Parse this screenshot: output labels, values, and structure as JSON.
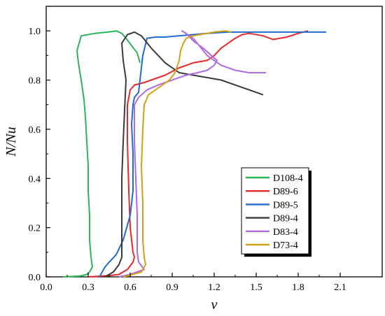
{
  "chart_data": {
    "type": "line",
    "xlabel": "ν",
    "ylabel": "N/Nu",
    "xlim": [
      0.0,
      2.4
    ],
    "ylim": [
      0.0,
      1.1
    ],
    "x_ticks": [
      "0.0",
      "0.3",
      "0.6",
      "0.9",
      "1.2",
      "1.5",
      "1.8",
      "2.1"
    ],
    "y_ticks": [
      "0.0",
      "0.2",
      "0.4",
      "0.6",
      "0.8",
      "1.0"
    ],
    "grid": false,
    "legend_position": "lower-right",
    "series": [
      {
        "name": "D108-4",
        "color": "#2db35a",
        "points": [
          [
            0.12,
            0.0
          ],
          [
            0.24,
            0.003
          ],
          [
            0.29,
            0.01
          ],
          [
            0.31,
            0.02
          ],
          [
            0.33,
            0.04
          ],
          [
            0.32,
            0.08
          ],
          [
            0.31,
            0.15
          ],
          [
            0.31,
            0.25
          ],
          [
            0.3,
            0.35
          ],
          [
            0.3,
            0.45
          ],
          [
            0.29,
            0.55
          ],
          [
            0.28,
            0.65
          ],
          [
            0.27,
            0.72
          ],
          [
            0.25,
            0.8
          ],
          [
            0.23,
            0.87
          ],
          [
            0.22,
            0.92
          ],
          [
            0.24,
            0.96
          ],
          [
            0.25,
            0.98
          ],
          [
            0.35,
            0.99
          ],
          [
            0.45,
            0.996
          ],
          [
            0.5,
            1.0
          ],
          [
            0.54,
            0.99
          ],
          [
            0.57,
            0.97
          ],
          [
            0.61,
            0.94
          ],
          [
            0.65,
            0.91
          ],
          [
            0.67,
            0.87
          ]
        ]
      },
      {
        "name": "D89-6",
        "color": "#e8282a",
        "points": [
          [
            0.3,
            0.0
          ],
          [
            0.45,
            0.005
          ],
          [
            0.52,
            0.01
          ],
          [
            0.58,
            0.03
          ],
          [
            0.62,
            0.06
          ],
          [
            0.63,
            0.08
          ],
          [
            0.62,
            0.1
          ],
          [
            0.6,
            0.2
          ],
          [
            0.59,
            0.35
          ],
          [
            0.58,
            0.55
          ],
          [
            0.58,
            0.7
          ],
          [
            0.6,
            0.76
          ],
          [
            0.63,
            0.78
          ],
          [
            0.7,
            0.79
          ],
          [
            0.75,
            0.8
          ],
          [
            0.85,
            0.82
          ],
          [
            0.95,
            0.85
          ],
          [
            1.05,
            0.87
          ],
          [
            1.15,
            0.88
          ],
          [
            1.2,
            0.9
          ],
          [
            1.25,
            0.93
          ],
          [
            1.3,
            0.95
          ],
          [
            1.35,
            0.97
          ],
          [
            1.4,
            0.985
          ],
          [
            1.45,
            0.99
          ],
          [
            1.55,
            0.98
          ],
          [
            1.62,
            0.965
          ],
          [
            1.72,
            0.975
          ],
          [
            1.8,
            0.99
          ],
          [
            1.87,
            1.0
          ]
        ]
      },
      {
        "name": "D89-5",
        "color": "#1f6ccc",
        "points": [
          [
            0.38,
            0.0
          ],
          [
            0.4,
            0.02
          ],
          [
            0.42,
            0.04
          ],
          [
            0.45,
            0.06
          ],
          [
            0.5,
            0.09
          ],
          [
            0.55,
            0.15
          ],
          [
            0.6,
            0.25
          ],
          [
            0.62,
            0.35
          ],
          [
            0.62,
            0.5
          ],
          [
            0.61,
            0.62
          ],
          [
            0.62,
            0.7
          ],
          [
            0.63,
            0.73
          ],
          [
            0.66,
            0.75
          ],
          [
            0.69,
            0.9
          ],
          [
            0.72,
            0.97
          ],
          [
            0.78,
            0.975
          ],
          [
            0.85,
            0.975
          ],
          [
            0.95,
            0.98
          ],
          [
            1.05,
            0.985
          ],
          [
            1.15,
            0.99
          ],
          [
            1.3,
            0.995
          ],
          [
            1.6,
            0.995
          ],
          [
            2.0,
            0.995
          ]
        ]
      },
      {
        "name": "D89-4",
        "color": "#3a3a3a",
        "points": [
          [
            0.42,
            0.0
          ],
          [
            0.48,
            0.02
          ],
          [
            0.52,
            0.05
          ],
          [
            0.54,
            0.08
          ],
          [
            0.54,
            0.12
          ],
          [
            0.54,
            0.25
          ],
          [
            0.54,
            0.4
          ],
          [
            0.55,
            0.55
          ],
          [
            0.56,
            0.68
          ],
          [
            0.57,
            0.8
          ],
          [
            0.55,
            0.88
          ],
          [
            0.54,
            0.95
          ],
          [
            0.58,
            0.985
          ],
          [
            0.63,
            0.995
          ],
          [
            0.68,
            0.98
          ],
          [
            0.75,
            0.93
          ],
          [
            0.85,
            0.87
          ],
          [
            0.95,
            0.83
          ],
          [
            1.05,
            0.82
          ],
          [
            1.15,
            0.81
          ],
          [
            1.25,
            0.8
          ],
          [
            1.35,
            0.78
          ],
          [
            1.45,
            0.76
          ],
          [
            1.55,
            0.74
          ]
        ]
      },
      {
        "name": "D83-4",
        "color": "#b06be0",
        "points": [
          [
            0.52,
            0.0
          ],
          [
            0.6,
            0.01
          ],
          [
            0.65,
            0.02
          ],
          [
            0.7,
            0.03
          ],
          [
            0.66,
            0.06
          ],
          [
            0.65,
            0.1
          ],
          [
            0.65,
            0.25
          ],
          [
            0.64,
            0.4
          ],
          [
            0.63,
            0.55
          ],
          [
            0.63,
            0.7
          ],
          [
            0.66,
            0.73
          ],
          [
            0.72,
            0.76
          ],
          [
            0.8,
            0.78
          ],
          [
            0.9,
            0.8
          ],
          [
            1.0,
            0.82
          ],
          [
            1.08,
            0.83
          ],
          [
            1.15,
            0.84
          ],
          [
            1.2,
            0.86
          ],
          [
            1.22,
            0.88
          ],
          [
            1.18,
            0.9
          ],
          [
            1.12,
            0.93
          ],
          [
            1.05,
            0.96
          ],
          [
            1.0,
            0.99
          ],
          [
            0.97,
            1.0
          ],
          [
            1.05,
            0.97
          ],
          [
            1.15,
            0.9
          ],
          [
            1.25,
            0.86
          ],
          [
            1.35,
            0.84
          ],
          [
            1.45,
            0.83
          ],
          [
            1.57,
            0.83
          ]
        ]
      },
      {
        "name": "D73-4",
        "color": "#d4a017",
        "points": [
          [
            0.55,
            0.0
          ],
          [
            0.62,
            0.01
          ],
          [
            0.68,
            0.02
          ],
          [
            0.71,
            0.05
          ],
          [
            0.7,
            0.08
          ],
          [
            0.69,
            0.15
          ],
          [
            0.69,
            0.3
          ],
          [
            0.68,
            0.45
          ],
          [
            0.69,
            0.6
          ],
          [
            0.7,
            0.7
          ],
          [
            0.73,
            0.74
          ],
          [
            0.78,
            0.76
          ],
          [
            0.83,
            0.78
          ],
          [
            0.88,
            0.8
          ],
          [
            0.92,
            0.83
          ],
          [
            0.95,
            0.88
          ],
          [
            0.96,
            0.92
          ],
          [
            0.98,
            0.95
          ],
          [
            1.0,
            0.97
          ],
          [
            1.05,
            0.98
          ],
          [
            1.1,
            0.985
          ],
          [
            1.15,
            0.99
          ],
          [
            1.2,
            0.995
          ],
          [
            1.28,
            1.0
          ],
          [
            1.32,
            0.995
          ]
        ]
      }
    ]
  }
}
